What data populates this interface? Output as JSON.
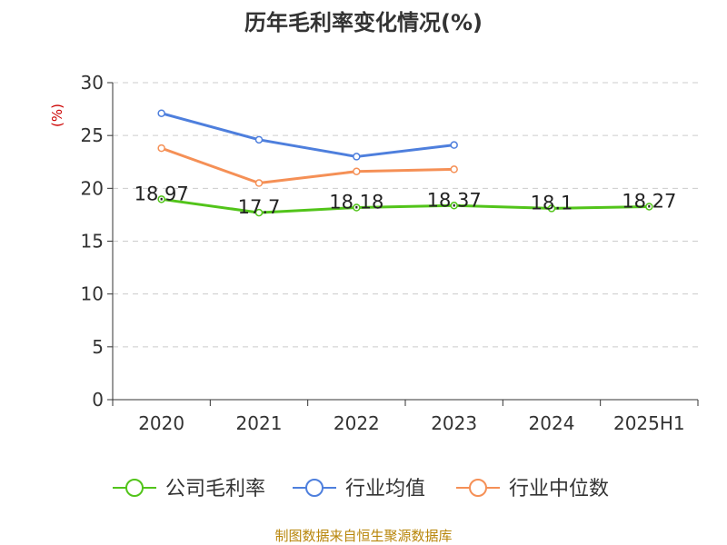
{
  "chart_data": {
    "type": "line",
    "title": "历年毛利率变化情况(%)",
    "ylabel": "(%)",
    "xlabel": "",
    "categories": [
      "2020",
      "2021",
      "2022",
      "2023",
      "2024",
      "2025H1"
    ],
    "ylim": [
      0,
      30
    ],
    "yticks": [
      0,
      5,
      10,
      15,
      20,
      25,
      30
    ],
    "grid": true,
    "legend_position": "bottom",
    "series": [
      {
        "name": "公司毛利率",
        "color": "#52c41a",
        "values": [
          18.97,
          17.7,
          18.18,
          18.37,
          18.1,
          18.27
        ],
        "labels": [
          "18.97",
          "17.7",
          "18.18",
          "18.37",
          "18.1",
          "18.27"
        ]
      },
      {
        "name": "行业均值",
        "color": "#4e7fdd",
        "values": [
          27.1,
          24.6,
          23.0,
          24.1,
          null,
          null
        ]
      },
      {
        "name": "行业中位数",
        "color": "#f59056",
        "values": [
          23.8,
          20.5,
          21.6,
          21.8,
          null,
          null
        ]
      }
    ]
  },
  "source_note": "制图数据来自恒生聚源数据库",
  "colors": {
    "axis": "#333333",
    "grid": "#cccccc",
    "ylabel": "#cc0000",
    "source": "#b8860b"
  }
}
